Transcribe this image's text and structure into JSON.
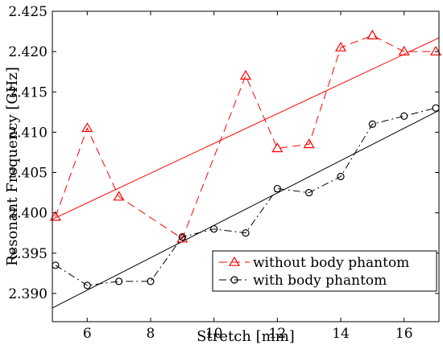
{
  "chart_data": {
    "type": "line",
    "xlabel": "Stretch [mm]",
    "ylabel": "Resonant Frequency [GHz]",
    "xlim": [
      4.9,
      17.1
    ],
    "ylim": [
      2.3865,
      2.425
    ],
    "xticks": [
      6,
      8,
      10,
      12,
      14,
      16
    ],
    "yticks": [
      2.39,
      2.395,
      2.4,
      2.405,
      2.41,
      2.415,
      2.42,
      2.425
    ],
    "ytick_labels": [
      "2.390",
      "2.395",
      "2.400",
      "2.405",
      "2.410",
      "2.415",
      "2.420",
      "2.425"
    ],
    "grid": false,
    "legend_position": "bottom-right",
    "series": [
      {
        "name": "without body phantom",
        "color": "#ff0000",
        "marker": "triangle",
        "line_style": "dashed",
        "x": [
          5,
          6,
          7,
          9,
          11,
          12,
          13,
          14,
          15,
          16,
          17
        ],
        "y": [
          2.3995,
          2.4105,
          2.402,
          2.3968,
          2.417,
          2.408,
          2.4085,
          2.4205,
          2.422,
          2.42,
          2.42
        ],
        "fit": {
          "x": [
            4.9,
            17.1
          ],
          "y": [
            2.3992,
            2.4217
          ]
        }
      },
      {
        "name": "with body phantom",
        "color": "#000000",
        "marker": "circle",
        "line_style": "dashdot",
        "x": [
          5,
          6,
          7,
          8,
          9,
          10,
          11,
          12,
          13,
          14,
          15,
          16,
          17
        ],
        "y": [
          2.3935,
          2.391,
          2.3915,
          2.3915,
          2.397,
          2.398,
          2.3975,
          2.403,
          2.4025,
          2.4045,
          2.411,
          2.412,
          2.413
        ],
        "fit": {
          "x": [
            4.9,
            17.1
          ],
          "y": [
            2.3882,
            2.4127
          ]
        }
      }
    ]
  }
}
